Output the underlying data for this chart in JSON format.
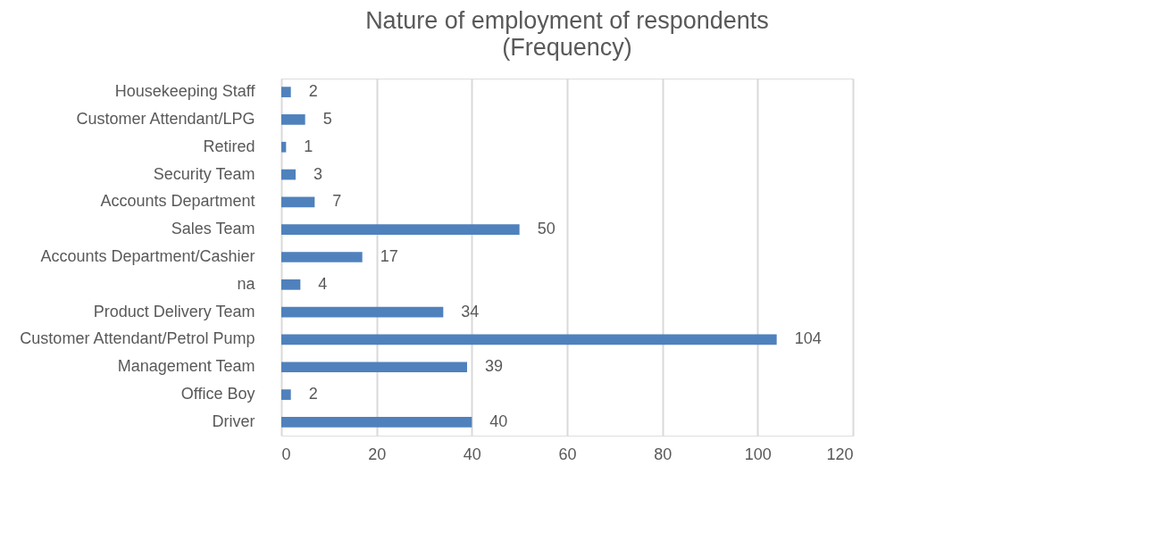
{
  "chart_data": {
    "type": "bar",
    "orientation": "horizontal",
    "title": "Nature of employment of respondents",
    "subtitle": "(Frequency)",
    "categories": [
      "Housekeeping Staff",
      "Customer Attendant/LPG",
      "Retired",
      "Security Team",
      "Accounts Department",
      "Sales Team",
      "Accounts Department/Cashier",
      "na",
      "Product Delivery Team",
      "Customer Attendant/Petrol Pump",
      "Management Team",
      "Office Boy",
      "Driver"
    ],
    "values": [
      2,
      5,
      1,
      3,
      7,
      50,
      17,
      4,
      34,
      104,
      39,
      2,
      40
    ],
    "color": "#4f81bd",
    "xlim": [
      0,
      120
    ],
    "xticks": [
      0,
      20,
      40,
      60,
      80,
      100,
      120
    ],
    "grid": "x",
    "data_labels": true
  }
}
